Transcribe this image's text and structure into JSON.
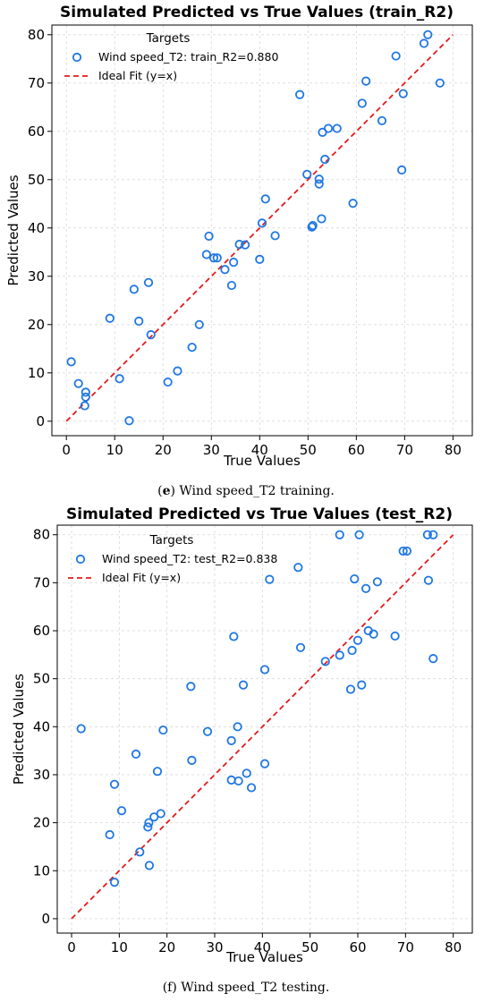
{
  "chart_data": [
    {
      "type": "scatter",
      "title": "Simulated Predicted vs True Values (train_R2)",
      "xlabel": "True Values",
      "ylabel": "Predicted Values",
      "xlim": [
        -3,
        84
      ],
      "ylim": [
        -3,
        82
      ],
      "xticks": [
        "0",
        "10",
        "20",
        "30",
        "40",
        "50",
        "60",
        "70",
        "80"
      ],
      "yticks": [
        "0",
        "10",
        "20",
        "30",
        "40",
        "50",
        "60",
        "70",
        "80"
      ],
      "grid": true,
      "legend": {
        "title": "Targets",
        "placement": "upper-left",
        "entries": [
          "Wind speed_T2: train_R2=0.880",
          "Ideal Fit (y=x)"
        ]
      },
      "caption": "(e) Wind speed_T2 training.",
      "caption_bold": "e",
      "series": [
        {
          "name": "Wind speed_T2: train_R2=0.880",
          "color": "#1f77e4",
          "points": [
            [
              1,
              12.3
            ],
            [
              2.5,
              7.8
            ],
            [
              4,
              6
            ],
            [
              4,
              5
            ],
            [
              3.8,
              3.2
            ],
            [
              9,
              21.3
            ],
            [
              11,
              8.8
            ],
            [
              13,
              0.1
            ],
            [
              14,
              27.3
            ],
            [
              15,
              20.7
            ],
            [
              17,
              28.7
            ],
            [
              17.5,
              17.9
            ],
            [
              21,
              8.1
            ],
            [
              23,
              10.4
            ],
            [
              26,
              15.3
            ],
            [
              27.5,
              20
            ],
            [
              29,
              34.5
            ],
            [
              29.5,
              38.3
            ],
            [
              30.5,
              33.8
            ],
            [
              31.2,
              33.8
            ],
            [
              32.8,
              31.4
            ],
            [
              34.2,
              28.1
            ],
            [
              34.6,
              32.9
            ],
            [
              35.8,
              36.6
            ],
            [
              37,
              36.5
            ],
            [
              40,
              33.5
            ],
            [
              40.5,
              41
            ],
            [
              41.2,
              46
            ],
            [
              43.2,
              38.4
            ],
            [
              48.3,
              67.6
            ],
            [
              49.8,
              51.1
            ],
            [
              50.8,
              40.2
            ],
            [
              51,
              40.5
            ],
            [
              52.3,
              49.1
            ],
            [
              52.3,
              50.1
            ],
            [
              52.8,
              41.9
            ],
            [
              53,
              59.8
            ],
            [
              53.5,
              54.2
            ],
            [
              54.2,
              60.6
            ],
            [
              56,
              60.6
            ],
            [
              59.3,
              45.1
            ],
            [
              61.2,
              65.8
            ],
            [
              62,
              70.4
            ],
            [
              65.3,
              62.2
            ],
            [
              68.2,
              75.6
            ],
            [
              69.4,
              52
            ],
            [
              69.7,
              67.8
            ],
            [
              74,
              78.2
            ],
            [
              74.8,
              80
            ],
            [
              77.3,
              70
            ]
          ]
        }
      ],
      "ideal_fit": {
        "name": "Ideal Fit (y=x)",
        "color": "#e31a1c",
        "from": 0,
        "to": 80
      }
    },
    {
      "type": "scatter",
      "title": "Simulated Predicted vs True Values (test_R2)",
      "xlabel": "True Values",
      "ylabel": "Predicted Values",
      "xlim": [
        -3,
        84
      ],
      "ylim": [
        -3,
        82
      ],
      "xticks": [
        "0",
        "10",
        "20",
        "30",
        "40",
        "50",
        "60",
        "70",
        "80"
      ],
      "yticks": [
        "0",
        "10",
        "20",
        "30",
        "40",
        "50",
        "60",
        "70",
        "80"
      ],
      "grid": true,
      "legend": {
        "title": "Targets",
        "placement": "upper-left",
        "entries": [
          "Wind speed_T2: test_R2=0.838",
          "Ideal Fit (y=x)"
        ]
      },
      "caption": "(f) Wind speed_T2 testing.",
      "caption_bold": "",
      "series": [
        {
          "name": "Wind speed_T2: test_R2=0.838",
          "color": "#1f77e4",
          "points": [
            [
              2,
              39.6
            ],
            [
              8,
              17.5
            ],
            [
              9,
              28
            ],
            [
              9,
              7.6
            ],
            [
              10.5,
              22.5
            ],
            [
              13.5,
              34.3
            ],
            [
              14.3,
              13.9
            ],
            [
              16,
              19.1
            ],
            [
              16.2,
              20
            ],
            [
              16.3,
              11.1
            ],
            [
              17.3,
              21.2
            ],
            [
              18,
              30.7
            ],
            [
              18.7,
              21.9
            ],
            [
              19.2,
              39.3
            ],
            [
              25,
              48.4
            ],
            [
              25.2,
              33
            ],
            [
              28.5,
              39
            ],
            [
              33.5,
              37.1
            ],
            [
              33.5,
              28.9
            ],
            [
              34,
              58.8
            ],
            [
              34.8,
              40
            ],
            [
              35,
              28.7
            ],
            [
              36,
              48.7
            ],
            [
              36.7,
              30.3
            ],
            [
              37.7,
              27.3
            ],
            [
              40.5,
              51.9
            ],
            [
              40.5,
              32.3
            ],
            [
              41.5,
              70.7
            ],
            [
              47.5,
              73.2
            ],
            [
              48,
              56.5
            ],
            [
              53.2,
              53.6
            ],
            [
              56.2,
              80
            ],
            [
              56.2,
              54.9
            ],
            [
              58.5,
              47.8
            ],
            [
              58.8,
              55.9
            ],
            [
              59.3,
              70.8
            ],
            [
              60,
              58
            ],
            [
              60.3,
              80
            ],
            [
              60.8,
              48.7
            ],
            [
              61.7,
              68.8
            ],
            [
              62.2,
              60
            ],
            [
              63.3,
              59.3
            ],
            [
              64.1,
              70.2
            ],
            [
              67.8,
              58.9
            ],
            [
              69.5,
              76.6
            ],
            [
              70.3,
              76.6
            ],
            [
              74.6,
              80
            ],
            [
              74.8,
              70.5
            ],
            [
              75.8,
              80
            ],
            [
              75.8,
              54.2
            ]
          ]
        }
      ],
      "ideal_fit": {
        "name": "Ideal Fit (y=x)",
        "color": "#e31a1c",
        "from": 0,
        "to": 80
      }
    }
  ]
}
